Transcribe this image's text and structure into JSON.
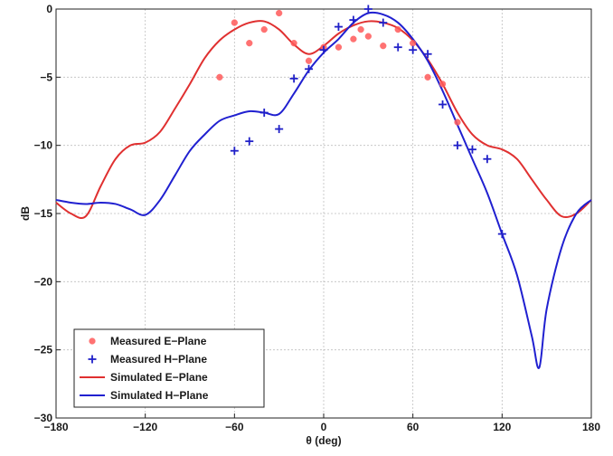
{
  "chart_data": {
    "type": "line",
    "xlabel": "θ (deg)",
    "ylabel": "dB",
    "xlim": [
      -180,
      180
    ],
    "ylim": [
      -30,
      0
    ],
    "xticks": [
      -180,
      -120,
      -60,
      0,
      60,
      120,
      180
    ],
    "xtick_labels": [
      "−180",
      "−120",
      "−60",
      "0",
      "60",
      "120",
      "180"
    ],
    "yticks": [
      0,
      -5,
      -10,
      -15,
      -20,
      -25,
      -30
    ],
    "ytick_labels": [
      "0",
      "−5",
      "−10",
      "−15",
      "−20",
      "−25",
      "−30"
    ],
    "grid": true,
    "legend_position": "bottom-left",
    "series": [
      {
        "name": "Measured E−Plane",
        "kind": "scatter",
        "marker": "o",
        "color": "#ff5a5a",
        "x": [
          -70,
          -60,
          -50,
          -40,
          -30,
          -20,
          -10,
          0,
          10,
          20,
          25,
          30,
          40,
          50,
          60,
          70,
          80,
          90
        ],
        "y": [
          -5.0,
          -1.0,
          -2.5,
          -1.5,
          -0.3,
          -2.5,
          -3.8,
          -2.8,
          -2.8,
          -2.2,
          -1.5,
          -2.0,
          -2.7,
          -1.5,
          -2.5,
          -5.0,
          -5.5,
          -8.3
        ]
      },
      {
        "name": "Measured H−Plane",
        "kind": "scatter",
        "marker": "+",
        "color": "#2020c8",
        "x": [
          -60,
          -50,
          -40,
          -30,
          -20,
          -10,
          0,
          10,
          20,
          30,
          40,
          50,
          60,
          70,
          80,
          90,
          100,
          110,
          120
        ],
        "y": [
          -10.4,
          -9.7,
          -7.6,
          -8.8,
          -5.1,
          -4.4,
          -3.0,
          -1.3,
          -0.8,
          0.0,
          -1.0,
          -2.8,
          -3.0,
          -3.3,
          -7.0,
          -10.0,
          -10.3,
          -11.0,
          -16.5
        ]
      },
      {
        "name": "Simulated E−Plane",
        "kind": "line",
        "color": "#e03030",
        "x": [
          -180,
          -170,
          -160,
          -150,
          -140,
          -130,
          -120,
          -110,
          -100,
          -90,
          -80,
          -70,
          -60,
          -50,
          -40,
          -30,
          -20,
          -10,
          0,
          10,
          20,
          30,
          40,
          50,
          60,
          70,
          80,
          90,
          100,
          110,
          120,
          130,
          140,
          150,
          160,
          170,
          180
        ],
        "y": [
          -14.2,
          -15.0,
          -15.2,
          -13.0,
          -11.0,
          -10.0,
          -9.8,
          -9.0,
          -7.3,
          -5.5,
          -3.6,
          -2.3,
          -1.5,
          -1.0,
          -0.9,
          -1.5,
          -2.6,
          -3.3,
          -2.7,
          -1.8,
          -1.2,
          -0.9,
          -1.0,
          -1.4,
          -2.3,
          -3.7,
          -5.5,
          -7.6,
          -9.2,
          -10.0,
          -10.3,
          -11.0,
          -12.5,
          -14.0,
          -15.2,
          -15.0,
          -14.0
        ]
      },
      {
        "name": "Simulated H−Plane",
        "kind": "line",
        "color": "#2020d0",
        "x": [
          -180,
          -170,
          -160,
          -150,
          -140,
          -130,
          -120,
          -110,
          -100,
          -90,
          -80,
          -70,
          -60,
          -50,
          -40,
          -30,
          -20,
          -10,
          0,
          10,
          20,
          30,
          40,
          50,
          60,
          70,
          80,
          90,
          100,
          110,
          120,
          130,
          140,
          145,
          150,
          160,
          170,
          180
        ],
        "y": [
          -14.0,
          -14.2,
          -14.3,
          -14.2,
          -14.3,
          -14.7,
          -15.1,
          -14.0,
          -12.2,
          -10.4,
          -9.2,
          -8.2,
          -7.8,
          -7.5,
          -7.6,
          -7.7,
          -6.2,
          -4.5,
          -3.2,
          -2.2,
          -1.0,
          -0.3,
          -0.4,
          -1.0,
          -2.2,
          -3.8,
          -6.0,
          -8.5,
          -11.0,
          -13.5,
          -16.5,
          -19.5,
          -24.0,
          -26.3,
          -22.0,
          -17.5,
          -15.0,
          -14.0
        ]
      }
    ]
  }
}
